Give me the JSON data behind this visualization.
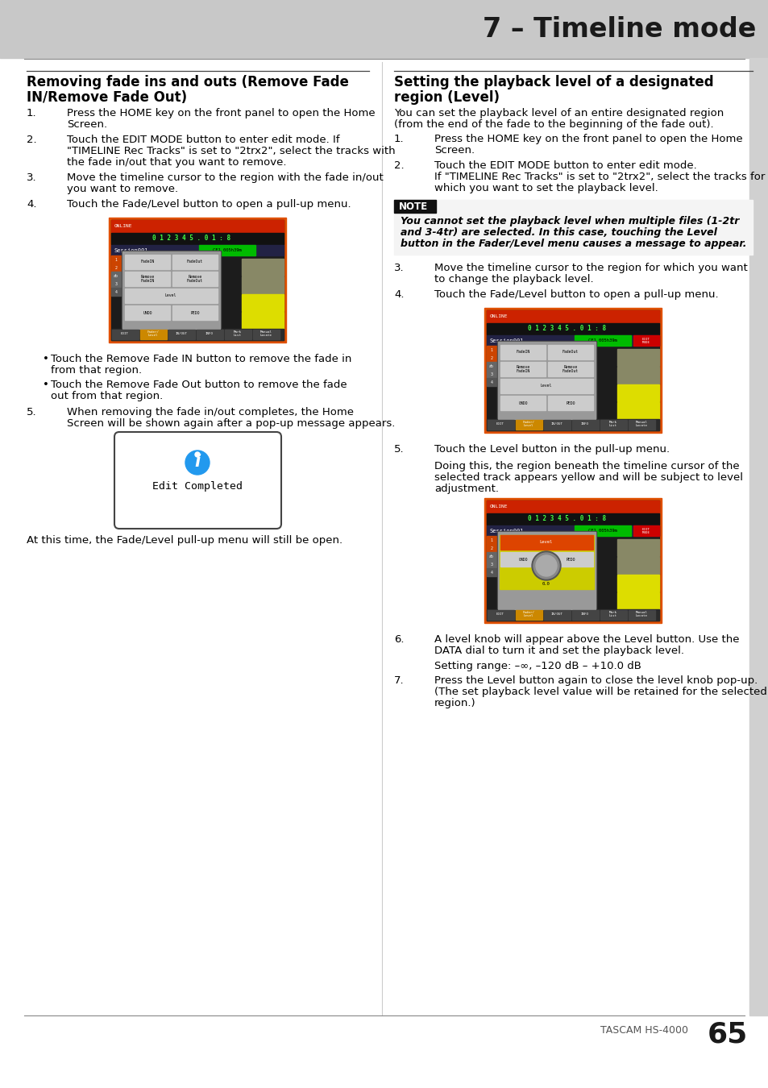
{
  "page_bg": "#ffffff",
  "header_bg": "#c8c8c8",
  "header_text": "7 – Timeline mode",
  "header_text_color": "#1a1a1a",
  "footer_text": "TASCAM HS-4000",
  "page_number": "65"
}
